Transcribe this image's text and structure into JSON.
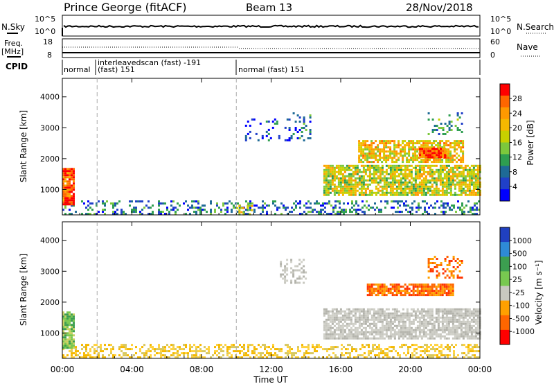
{
  "header": {
    "station": "Prince George (fitACF)",
    "beam": "Beam 13",
    "date": "28/Nov/2018"
  },
  "noise_panel": {
    "left_label": "N.Sky",
    "left_ticks": [
      "10^5",
      "10^0"
    ],
    "right_label": "N.Search",
    "right_ticks": [
      "10^5",
      "10^0"
    ]
  },
  "freq_panel": {
    "left_label_1": "Freq.",
    "left_label_2": "[MHz]",
    "left_ticks": [
      "18",
      "8"
    ],
    "right_label": "Nave",
    "right_ticks": [
      "60",
      "0"
    ]
  },
  "cpid_panel": {
    "label": "CPID",
    "segments": [
      {
        "start_hour": 0.0,
        "line1": "normal",
        "line2": ""
      },
      {
        "start_hour": 2.0,
        "line1": "interleavedscan (fast) -191",
        "line2": "(fast) 151"
      },
      {
        "start_hour": 10.0,
        "line1": "normal (fast) 151",
        "line2": ""
      }
    ]
  },
  "chart_data": [
    {
      "type": "heatmap",
      "name": "power",
      "ylabel": "Slant Range [km]",
      "yticks": [
        "1000",
        "2000",
        "3000",
        "4000"
      ],
      "ylim": [
        180,
        4600
      ],
      "xlim_hours": [
        0,
        24
      ],
      "xticks": [
        "00:00",
        "04:00",
        "08:00",
        "12:00",
        "16:00",
        "20:00",
        "00:00"
      ],
      "colorbar_label": "Power [dB]",
      "colorbar_ticks": [
        "28",
        "24",
        "20",
        "16",
        "12",
        "8",
        "4"
      ],
      "colorbar_colors": [
        "#ff0000",
        "#ff6600",
        "#ff9900",
        "#f5b800",
        "#c8d000",
        "#7cc83c",
        "#2e9e50",
        "#1e6a96",
        "#2040c8",
        "#0000ff"
      ],
      "echo_regions": [
        {
          "t0": 0.0,
          "t1": 24.0,
          "r0": 200,
          "r1": 650,
          "level": 0.22,
          "density": 0.35
        },
        {
          "t0": 0.0,
          "t1": 0.7,
          "r0": 500,
          "r1": 1700,
          "level": 0.9,
          "density": 0.95
        },
        {
          "t0": 10.0,
          "t1": 11.0,
          "r0": 200,
          "r1": 500,
          "level": 0.6,
          "density": 0.6
        },
        {
          "t0": 13.0,
          "t1": 14.2,
          "r0": 2600,
          "r1": 3500,
          "level": 0.2,
          "density": 0.3
        },
        {
          "t0": 10.5,
          "t1": 13.0,
          "r0": 2600,
          "r1": 3300,
          "level": 0.15,
          "density": 0.12
        },
        {
          "t0": 15.0,
          "t1": 24.0,
          "r0": 800,
          "r1": 1800,
          "level": 0.55,
          "density": 0.8
        },
        {
          "t0": 17.0,
          "t1": 23.0,
          "r0": 1900,
          "r1": 2600,
          "level": 0.65,
          "density": 0.75
        },
        {
          "t0": 20.5,
          "t1": 22.0,
          "r0": 2050,
          "r1": 2350,
          "level": 0.95,
          "density": 0.95
        },
        {
          "t0": 21.0,
          "t1": 23.0,
          "r0": 2800,
          "r1": 3500,
          "level": 0.3,
          "density": 0.25
        }
      ]
    },
    {
      "type": "heatmap",
      "name": "velocity",
      "ylabel": "Slant Range [km]",
      "yticks": [
        "1000",
        "2000",
        "3000",
        "4000"
      ],
      "ylim": [
        180,
        4600
      ],
      "xlim_hours": [
        0,
        24
      ],
      "xlabel": "Time UT",
      "xticks": [
        "00:00",
        "04:00",
        "08:00",
        "12:00",
        "16:00",
        "20:00",
        "00:00"
      ],
      "colorbar_label": "Velocity [m s⁻¹]",
      "colorbar_ticks": [
        "1000",
        "500",
        "100",
        "25",
        "-25",
        "-100",
        "-500",
        "-1000"
      ],
      "colorbar_colors": [
        "#2040c0",
        "#2e8ad6",
        "#3c9e50",
        "#78c850",
        "#c8c8c0",
        "#ffa000",
        "#ff6600",
        "#ff0000"
      ],
      "echo_regions": [
        {
          "t0": 0.0,
          "t1": 24.0,
          "r0": 200,
          "r1": 650,
          "vel": "yellow",
          "density": 0.45
        },
        {
          "t0": 0.0,
          "t1": 0.7,
          "r0": 500,
          "r1": 1700,
          "vel": "green",
          "density": 0.9
        },
        {
          "t0": 15.0,
          "t1": 24.0,
          "r0": 800,
          "r1": 1800,
          "vel": "grey",
          "density": 0.8
        },
        {
          "t0": 17.5,
          "t1": 22.5,
          "r0": 2200,
          "r1": 2600,
          "vel": "orange",
          "density": 0.85
        },
        {
          "t0": 21.0,
          "t1": 23.0,
          "r0": 2800,
          "r1": 3500,
          "vel": "orange",
          "density": 0.3
        },
        {
          "t0": 12.5,
          "t1": 14.0,
          "r0": 2600,
          "r1": 3400,
          "vel": "grey",
          "density": 0.3
        }
      ]
    }
  ]
}
